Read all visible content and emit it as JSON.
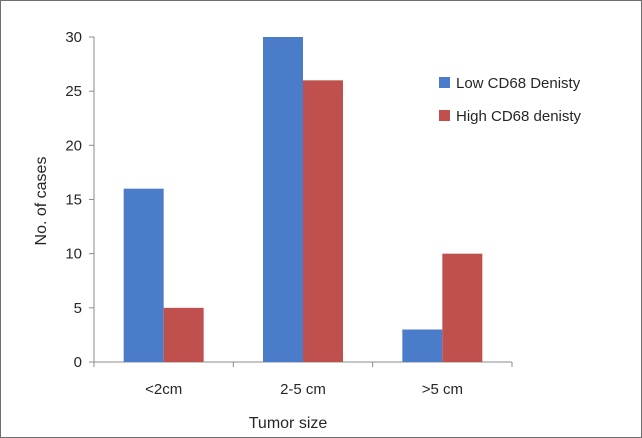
{
  "chart_data": {
    "type": "bar",
    "title": "",
    "xlabel": "Tumor size",
    "ylabel": "No. of cases",
    "categories": [
      "<2cm",
      "2-5 cm",
      ">5 cm"
    ],
    "ylim": [
      0,
      30
    ],
    "yticks": [
      0,
      5,
      10,
      15,
      20,
      25,
      30
    ],
    "grid": false,
    "legend_position": "top-right",
    "series": [
      {
        "name": "Low CD68 Denisty",
        "color": "#4a7cc9",
        "values": [
          16,
          30,
          3
        ]
      },
      {
        "name": "High CD68 denisty",
        "color": "#c0504d",
        "values": [
          5,
          26,
          10
        ]
      }
    ]
  }
}
